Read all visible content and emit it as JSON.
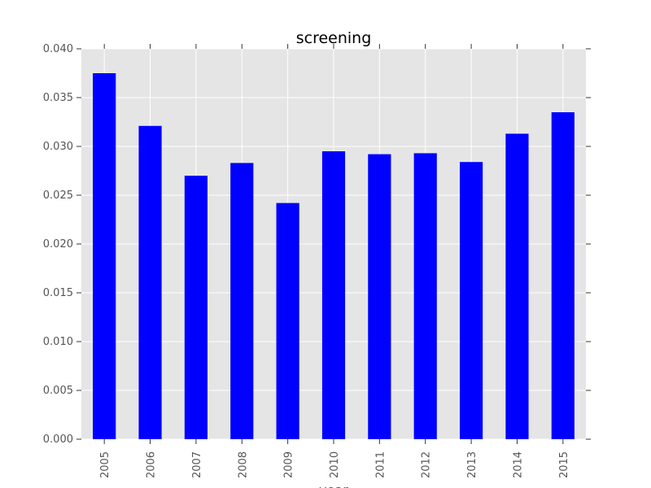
{
  "chart_data": {
    "type": "bar",
    "title": "screening",
    "xlabel": "year",
    "ylabel": "",
    "categories": [
      "2005",
      "2006",
      "2007",
      "2008",
      "2009",
      "2010",
      "2011",
      "2012",
      "2013",
      "2014",
      "2015"
    ],
    "values": [
      0.0375,
      0.0321,
      0.027,
      0.0283,
      0.0242,
      0.0295,
      0.0292,
      0.0293,
      0.0284,
      0.0313,
      0.0335
    ],
    "ylim": [
      0,
      0.04
    ],
    "yticks": [
      "0.000",
      "0.005",
      "0.010",
      "0.015",
      "0.020",
      "0.025",
      "0.030",
      "0.035",
      "0.040"
    ],
    "grid": true,
    "legend": "none",
    "colors": {
      "bar": "#0000ff",
      "plot_background": "#e5e5e5",
      "grid": "#ffffff",
      "tick_text": "#555555"
    }
  }
}
